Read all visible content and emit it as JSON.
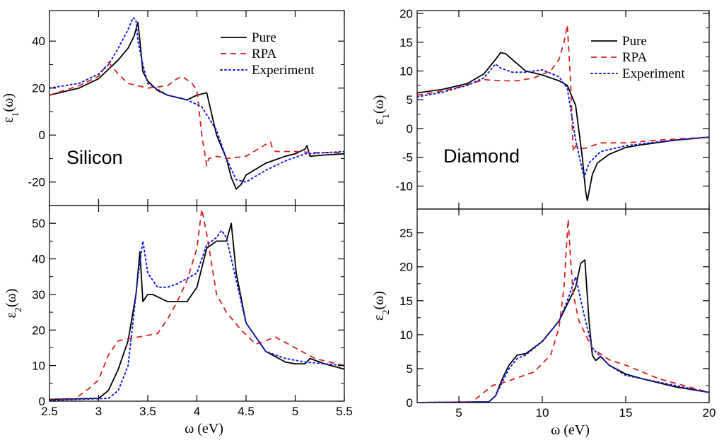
{
  "chart_data": [
    {
      "type": "line",
      "panel": "silicon-eps1",
      "annotation": "Silicon",
      "ylabel": "ε1(ω)",
      "xlim": [
        2.5,
        5.5
      ],
      "ylim": [
        -30,
        53
      ],
      "yticks": [
        -20,
        0,
        20,
        40
      ],
      "legend": "top-right",
      "series": [
        {
          "name": "Pure",
          "color": "#000000",
          "dash": "solid",
          "x": [
            2.5,
            2.8,
            3.0,
            3.1,
            3.2,
            3.3,
            3.36,
            3.4,
            3.42,
            3.45,
            3.5,
            3.6,
            3.7,
            3.8,
            3.9,
            4.0,
            4.1,
            4.15,
            4.2,
            4.3,
            4.35,
            4.4,
            4.45,
            4.5,
            4.7,
            4.9,
            5.0,
            5.1,
            5.12,
            5.15,
            5.3,
            5.5
          ],
          "y": [
            17,
            20,
            24,
            28,
            32,
            37,
            42,
            48,
            40,
            27,
            23,
            19,
            17,
            16,
            15,
            17,
            18,
            9,
            0,
            -10,
            -18,
            -23,
            -21,
            -17,
            -12,
            -9,
            -8,
            -6,
            -4.5,
            -9,
            -8.5,
            -8
          ]
        },
        {
          "name": "RPA",
          "color": "#d42020",
          "dash": "8,6",
          "x": [
            2.5,
            2.8,
            3.0,
            3.1,
            3.2,
            3.3,
            3.5,
            3.7,
            3.8,
            3.85,
            3.95,
            4.0,
            4.05,
            4.1,
            4.12,
            4.2,
            4.3,
            4.5,
            4.7,
            4.75,
            4.77,
            4.8,
            5.0,
            5.2,
            5.5
          ],
          "y": [
            17,
            21,
            25,
            31,
            26,
            22,
            20,
            21,
            24,
            25,
            22,
            19,
            0,
            -13,
            -10,
            -9,
            -10,
            -9,
            -4,
            -3,
            -6,
            -7,
            -7,
            -7.5,
            -7.5
          ]
        },
        {
          "name": "Experiment",
          "color": "#1a1ae0",
          "dash": "2,4",
          "x": [
            2.5,
            2.8,
            3.0,
            3.1,
            3.2,
            3.3,
            3.35,
            3.38,
            3.4,
            3.45,
            3.5,
            3.7,
            3.9,
            4.05,
            4.2,
            4.3,
            4.4,
            4.5,
            4.7,
            4.9,
            5.1,
            5.3,
            5.5
          ],
          "y": [
            20,
            22,
            26,
            30,
            37,
            45,
            50,
            49,
            40,
            30,
            22,
            17,
            15,
            12,
            2,
            -10,
            -19,
            -20,
            -15,
            -11,
            -8,
            -7.5,
            -7
          ]
        }
      ]
    },
    {
      "type": "line",
      "panel": "silicon-eps2",
      "ylabel": "ε2(ω)",
      "xlabel": "ω (eV)",
      "xlim": [
        2.5,
        5.5
      ],
      "ylim": [
        0,
        55
      ],
      "xticks": [
        2.5,
        3,
        3.5,
        4,
        4.5,
        5,
        5.5
      ],
      "yticks": [
        0,
        10,
        20,
        30,
        40,
        50
      ],
      "series": [
        {
          "name": "Pure",
          "color": "#000000",
          "dash": "solid",
          "x": [
            2.5,
            3.0,
            3.1,
            3.2,
            3.3,
            3.38,
            3.42,
            3.45,
            3.5,
            3.55,
            3.7,
            3.9,
            4.0,
            4.1,
            4.2,
            4.3,
            4.35,
            4.4,
            4.5,
            4.7,
            4.9,
            5.0,
            5.1,
            5.15,
            5.3,
            5.5
          ],
          "y": [
            0.5,
            0.8,
            3,
            9,
            17,
            30,
            42,
            28,
            30,
            30,
            28,
            28,
            32,
            43,
            45,
            45,
            50,
            36,
            22,
            14,
            11,
            10.5,
            10.5,
            12,
            10.5,
            9
          ]
        },
        {
          "name": "RPA",
          "color": "#d42020",
          "dash": "8,6",
          "x": [
            2.5,
            2.75,
            2.9,
            3.0,
            3.1,
            3.2,
            3.4,
            3.6,
            3.7,
            3.8,
            3.9,
            4.0,
            4.05,
            4.1,
            4.2,
            4.3,
            4.45,
            4.6,
            4.8,
            5.0,
            5.2,
            5.5
          ],
          "y": [
            0.3,
            0.5,
            3.5,
            6,
            13,
            17,
            18,
            19,
            23,
            28,
            34,
            43,
            54,
            47,
            30,
            25,
            20,
            16,
            18,
            15,
            12,
            10
          ]
        },
        {
          "name": "Experiment",
          "color": "#1a1ae0",
          "dash": "2,4",
          "x": [
            2.5,
            3.1,
            3.2,
            3.3,
            3.4,
            3.45,
            3.5,
            3.6,
            3.7,
            3.8,
            4.0,
            4.1,
            4.2,
            4.25,
            4.3,
            4.4,
            4.5,
            4.7,
            4.9,
            5.1,
            5.3,
            5.5
          ],
          "y": [
            0.2,
            0.8,
            3,
            10,
            35,
            45,
            36,
            32,
            32,
            33,
            36,
            44,
            46,
            48,
            46,
            34,
            22,
            14,
            12,
            11,
            10.5,
            10
          ]
        }
      ]
    },
    {
      "type": "line",
      "panel": "diamond-eps1",
      "annotation": "Diamond",
      "ylabel": "ε1(ω)",
      "xlim": [
        2.5,
        20
      ],
      "ylim": [
        -14,
        20.5
      ],
      "yticks": [
        -10,
        -5,
        0,
        5,
        10,
        15,
        20
      ],
      "legend": "top-right",
      "series": [
        {
          "name": "Pure",
          "color": "#000000",
          "dash": "solid",
          "x": [
            2.5,
            4,
            5.5,
            6.5,
            7.2,
            7.5,
            7.8,
            8.2,
            9.0,
            10.0,
            11.0,
            11.5,
            12.0,
            12.4,
            12.6,
            12.7,
            13.0,
            13.3,
            14.0,
            15.0,
            16.0,
            18.0,
            20.0
          ],
          "y": [
            6.2,
            6.8,
            7.8,
            9.5,
            12,
            13.2,
            13,
            12,
            10,
            9.3,
            8.3,
            7.5,
            4,
            -5,
            -11,
            -12.5,
            -8,
            -6,
            -4.5,
            -3.3,
            -2.8,
            -2,
            -1.5
          ]
        },
        {
          "name": "RPA",
          "color": "#d42020",
          "dash": "8,6",
          "x": [
            2.5,
            4,
            5.5,
            6.5,
            7.5,
            8.5,
            9.5,
            10.5,
            11.0,
            11.3,
            11.5,
            11.7,
            11.85,
            12.0,
            12.5,
            13.5,
            15,
            17,
            20
          ],
          "y": [
            5.8,
            6.5,
            7.6,
            8.5,
            8.3,
            8.3,
            8.8,
            10,
            12,
            15,
            18,
            8,
            -4,
            -3,
            -3.5,
            -2.5,
            -2.5,
            -2,
            -1.5
          ]
        },
        {
          "name": "Experiment",
          "color": "#1a1ae0",
          "dash": "2,4",
          "x": [
            2.5,
            4,
            5.5,
            6.5,
            7.2,
            7.5,
            8.2,
            9.0,
            10.0,
            11.0,
            11.5,
            12.0,
            12.5,
            12.8,
            13.5,
            15,
            17,
            20
          ],
          "y": [
            5.5,
            6.3,
            7.5,
            8.8,
            11.2,
            10.5,
            9.8,
            9.8,
            10.2,
            9.0,
            7.0,
            -2,
            -8.5,
            -6,
            -4,
            -3,
            -2.3,
            -1.5
          ]
        }
      ]
    },
    {
      "type": "line",
      "panel": "diamond-eps2",
      "ylabel": "ε2(ω)",
      "xlabel": "ω (eV)",
      "xlim": [
        2.5,
        20
      ],
      "ylim": [
        0,
        28.5
      ],
      "xticks": [
        5,
        10,
        15,
        20
      ],
      "yticks": [
        0,
        5,
        10,
        15,
        20,
        25
      ],
      "series": [
        {
          "name": "Pure",
          "color": "#000000",
          "dash": "solid",
          "x": [
            2.5,
            6.8,
            7.2,
            7.6,
            8.0,
            8.5,
            9.0,
            10.0,
            11.0,
            12.0,
            12.3,
            12.55,
            12.8,
            13.0,
            13.2,
            13.5,
            14.0,
            15.0,
            16.0,
            18.0,
            20.0
          ],
          "y": [
            0,
            0.1,
            1,
            3.5,
            5.5,
            7,
            7.2,
            9,
            12,
            17,
            20.5,
            21,
            12,
            7,
            6.2,
            6.8,
            5.5,
            4.2,
            3.5,
            2.3,
            1.5
          ]
        },
        {
          "name": "RPA",
          "color": "#d42020",
          "dash": "8,6",
          "x": [
            2.5,
            5.8,
            6.5,
            7.0,
            8.0,
            9.5,
            10.5,
            11.0,
            11.3,
            11.55,
            11.7,
            11.85,
            12.2,
            13.0,
            14.0,
            15.0,
            17.0,
            20.0
          ],
          "y": [
            0,
            0.1,
            1.5,
            2.5,
            3.2,
            4.5,
            7,
            11,
            17,
            27,
            21,
            16,
            12,
            8,
            6.3,
            5.5,
            3.5,
            1.5
          ]
        },
        {
          "name": "Experiment",
          "color": "#1a1ae0",
          "dash": "2,4",
          "x": [
            2.5,
            6.8,
            7.2,
            7.6,
            8.0,
            8.5,
            9.0,
            10.0,
            11.0,
            11.5,
            12.0,
            12.5,
            13.0,
            14.0,
            15.0,
            17.0,
            20.0
          ],
          "y": [
            0,
            0.1,
            1,
            3,
            5,
            6.5,
            7,
            9,
            12,
            15,
            18.5,
            13,
            8,
            5.5,
            4,
            3,
            1.5
          ]
        }
      ]
    }
  ]
}
